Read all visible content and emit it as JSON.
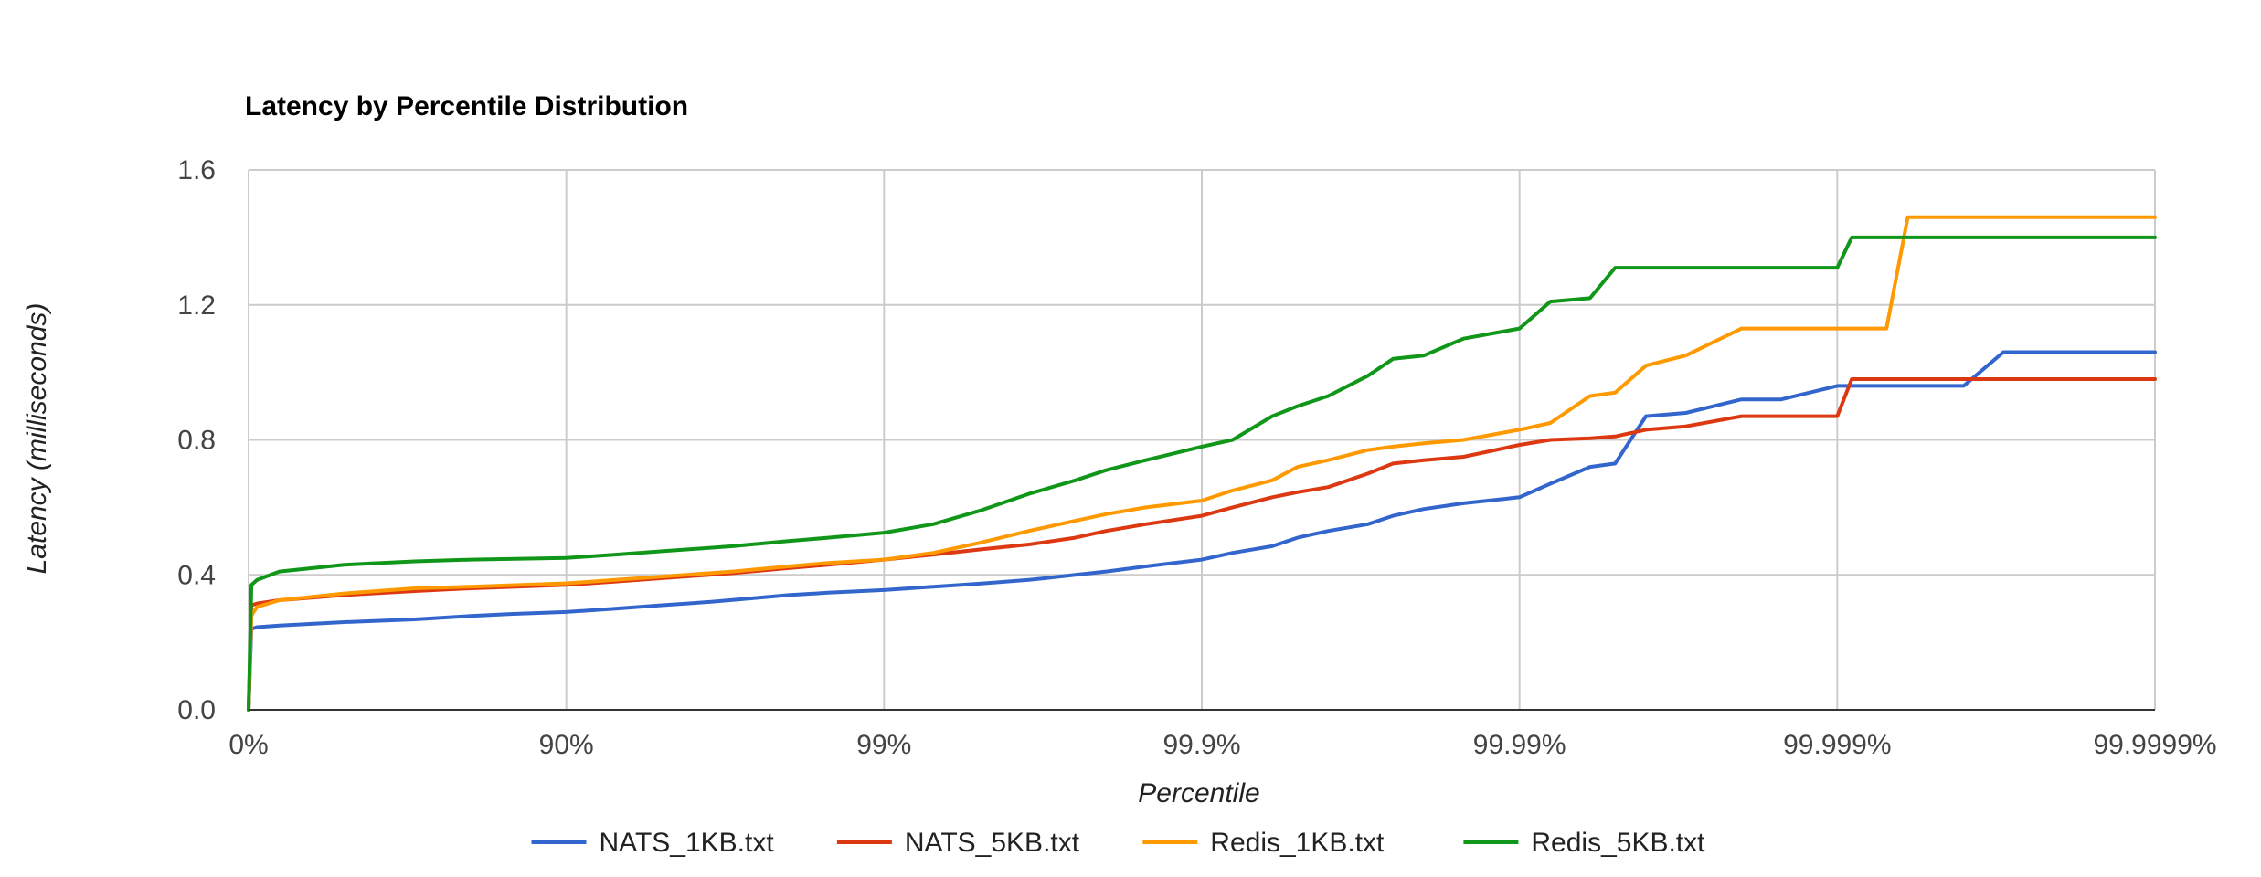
{
  "chart_data": {
    "type": "line",
    "title": "Latency by Percentile Distribution",
    "xlabel": "Percentile",
    "ylabel": "Latency (milliseconds)",
    "x_scale": "log10 of 1/(1-percentile); tick labels mark nines",
    "x_ticks": [
      "0%",
      "90%",
      "99%",
      "99.9%",
      "99.99%",
      "99.999%",
      "99.9999%"
    ],
    "y_ticks": [
      "0.0",
      "0.4",
      "0.8",
      "1.2",
      "1.6"
    ],
    "ylim": [
      0,
      1.6
    ],
    "grid": true,
    "legend_position": "bottom",
    "series": [
      {
        "name": "NATS_1KB.txt",
        "color": "#3366cc",
        "percentile": [
          0,
          2,
          6,
          20,
          50,
          70,
          80,
          85,
          90,
          93,
          95,
          96.5,
          97.5,
          98,
          98.5,
          99,
          99.3,
          99.5,
          99.65,
          99.75,
          99.8,
          99.85,
          99.9,
          99.92,
          99.94,
          99.95,
          99.96,
          99.97,
          99.975,
          99.98,
          99.985,
          99.99,
          99.992,
          99.994,
          99.995,
          99.996,
          99.997,
          99.998,
          99.9985,
          99.999,
          99.9992,
          99.9994,
          99.9995,
          99.9996,
          99.9997,
          99.9999
        ],
        "latency": [
          0,
          0.24,
          0.245,
          0.25,
          0.26,
          0.268,
          0.278,
          0.284,
          0.29,
          0.3,
          0.31,
          0.32,
          0.332,
          0.34,
          0.347,
          0.355,
          0.365,
          0.374,
          0.385,
          0.4,
          0.41,
          0.425,
          0.445,
          0.465,
          0.485,
          0.51,
          0.53,
          0.55,
          0.575,
          0.595,
          0.612,
          0.63,
          0.67,
          0.72,
          0.73,
          0.87,
          0.88,
          0.92,
          0.92,
          0.96,
          0.96,
          0.96,
          0.96,
          0.96,
          1.06,
          1.06
        ]
      },
      {
        "name": "NATS_5KB.txt",
        "color": "#dc3912",
        "percentile": [
          0,
          2,
          6,
          20,
          50,
          70,
          80,
          90,
          93,
          95,
          97,
          98,
          98.5,
          99,
          99.3,
          99.5,
          99.65,
          99.75,
          99.8,
          99.85,
          99.9,
          99.92,
          99.94,
          99.95,
          99.96,
          99.97,
          99.975,
          99.98,
          99.985,
          99.99,
          99.992,
          99.994,
          99.995,
          99.996,
          99.997,
          99.998,
          99.999,
          99.9991,
          99.9993,
          99.9995,
          99.9997,
          99.9999
        ],
        "latency": [
          0,
          0.31,
          0.315,
          0.325,
          0.34,
          0.352,
          0.36,
          0.37,
          0.38,
          0.39,
          0.405,
          0.42,
          0.43,
          0.445,
          0.46,
          0.475,
          0.49,
          0.51,
          0.53,
          0.55,
          0.575,
          0.6,
          0.63,
          0.645,
          0.66,
          0.7,
          0.73,
          0.74,
          0.75,
          0.785,
          0.8,
          0.805,
          0.81,
          0.83,
          0.84,
          0.87,
          0.87,
          0.98,
          0.98,
          0.98,
          0.98,
          0.98
        ]
      },
      {
        "name": "Redis_1KB.txt",
        "color": "#ff9900",
        "percentile": [
          0,
          2,
          6,
          20,
          50,
          70,
          80,
          90,
          93,
          95,
          97,
          98,
          98.5,
          99,
          99.3,
          99.5,
          99.65,
          99.75,
          99.8,
          99.85,
          99.9,
          99.92,
          99.94,
          99.95,
          99.96,
          99.97,
          99.975,
          99.98,
          99.985,
          99.99,
          99.992,
          99.994,
          99.995,
          99.996,
          99.997,
          99.998,
          99.999,
          99.9993,
          99.9994,
          99.9996,
          99.9999
        ],
        "latency": [
          0,
          0.28,
          0.305,
          0.325,
          0.345,
          0.36,
          0.365,
          0.375,
          0.385,
          0.395,
          0.41,
          0.425,
          0.435,
          0.445,
          0.465,
          0.495,
          0.53,
          0.56,
          0.58,
          0.6,
          0.62,
          0.65,
          0.68,
          0.72,
          0.74,
          0.77,
          0.78,
          0.79,
          0.8,
          0.83,
          0.85,
          0.93,
          0.94,
          1.02,
          1.05,
          1.13,
          1.13,
          1.13,
          1.46,
          1.46,
          1.46
        ]
      },
      {
        "name": "Redis_5KB.txt",
        "color": "#109618",
        "percentile": [
          0,
          2,
          6,
          20,
          50,
          70,
          80,
          90,
          93,
          95,
          97,
          98,
          98.5,
          99,
          99.3,
          99.5,
          99.65,
          99.75,
          99.8,
          99.85,
          99.9,
          99.92,
          99.94,
          99.95,
          99.96,
          99.97,
          99.975,
          99.98,
          99.985,
          99.99,
          99.992,
          99.994,
          99.995,
          99.996,
          99.997,
          99.998,
          99.999,
          99.9991,
          99.9993,
          99.9995,
          99.9999
        ],
        "latency": [
          0,
          0.37,
          0.385,
          0.41,
          0.43,
          0.44,
          0.445,
          0.45,
          0.46,
          0.47,
          0.485,
          0.5,
          0.51,
          0.525,
          0.55,
          0.59,
          0.64,
          0.68,
          0.71,
          0.74,
          0.78,
          0.8,
          0.87,
          0.9,
          0.93,
          0.99,
          1.04,
          1.05,
          1.1,
          1.13,
          1.21,
          1.22,
          1.31,
          1.31,
          1.31,
          1.31,
          1.31,
          1.4,
          1.4,
          1.4,
          1.4
        ]
      }
    ]
  }
}
